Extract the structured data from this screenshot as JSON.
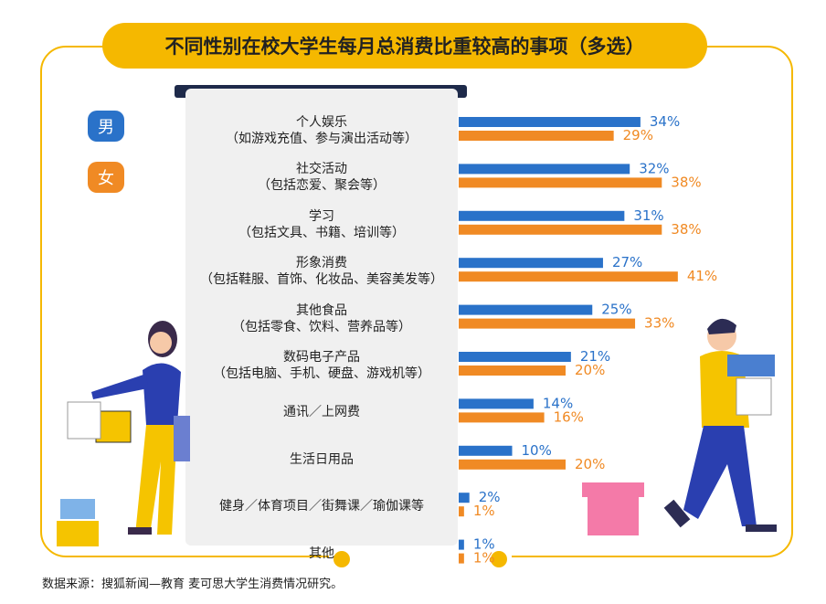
{
  "title": "不同性别在校大学生每月总消费比重较高的事项（多选）",
  "legend": {
    "male": "男",
    "female": "女"
  },
  "colors": {
    "male": "#2a72c9",
    "female": "#f08a24",
    "accent": "#f5b800",
    "panel": "#f0f0f0"
  },
  "source": "数据来源：搜狐新闻—教育 麦可思大学生消费情况研究。",
  "chart_data": {
    "type": "bar",
    "orientation": "horizontal",
    "title": "不同性别在校大学生每月总消费比重较高的事项（多选）",
    "categories": [
      {
        "name": "个人娱乐",
        "note": "（如游戏充值、参与演出活动等）"
      },
      {
        "name": "社交活动",
        "note": "（包括恋爱、聚会等）"
      },
      {
        "name": "学习",
        "note": "（包括文具、书籍、培训等）"
      },
      {
        "name": "形象消费",
        "note": "（包括鞋服、首饰、化妆品、美容美发等）"
      },
      {
        "name": "其他食品",
        "note": "（包括零食、饮料、营养品等）"
      },
      {
        "name": "数码电子产品",
        "note": "（包括电脑、手机、硬盘、游戏机等）"
      },
      {
        "name": "通讯／上网费",
        "note": ""
      },
      {
        "name": "生活日用品",
        "note": ""
      },
      {
        "name": "健身／体育项目／街舞课／瑜伽课等",
        "note": ""
      },
      {
        "name": "其他",
        "note": ""
      }
    ],
    "series": [
      {
        "name": "男",
        "values": [
          34,
          32,
          31,
          27,
          25,
          21,
          14,
          10,
          2,
          1
        ]
      },
      {
        "name": "女",
        "values": [
          29,
          38,
          38,
          41,
          33,
          20,
          16,
          20,
          1,
          1
        ]
      }
    ],
    "value_suffix": "%",
    "xlim": [
      0,
      100
    ]
  }
}
